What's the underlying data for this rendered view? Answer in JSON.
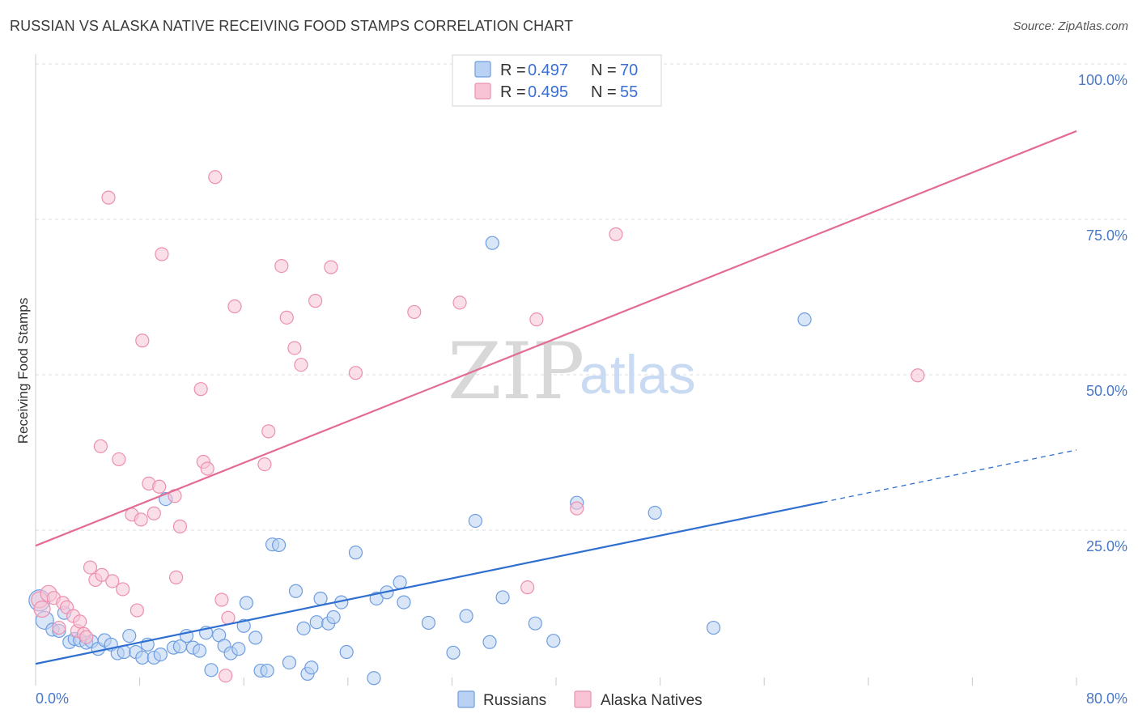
{
  "title": "RUSSIAN VS ALASKA NATIVE RECEIVING FOOD STAMPS CORRELATION CHART",
  "source": "Source: ZipAtlas.com",
  "watermark": {
    "part1": "ZIP",
    "part2": "atlas"
  },
  "colors": {
    "russians_fill": "#b9d1f3",
    "russians_stroke": "#6e9de0",
    "russians_line": "#2f6fd0",
    "alaska_fill": "#f8c4d5",
    "alaska_stroke": "#ec8fae",
    "alaska_line": "#e46b93",
    "grid": "#dcdcdc",
    "tick_text": "#4a78c8"
  },
  "legend": {
    "russians": {
      "r_label": "R =",
      "r_value": "0.497",
      "n_label": "N =",
      "n_value": "70"
    },
    "alaska": {
      "r_label": "R =",
      "r_value": "0.495",
      "n_label": "N =",
      "n_value": "55"
    }
  },
  "chart_data": {
    "type": "scatter",
    "title": "RUSSIAN VS ALASKA NATIVE RECEIVING FOOD STAMPS CORRELATION CHART",
    "xlabel": "",
    "ylabel": "Receiving Food Stamps",
    "xlim": [
      0,
      80
    ],
    "ylim": [
      0,
      100
    ],
    "x_tick_labels": [
      "0.0%",
      "80.0%"
    ],
    "y_ticks": [
      25,
      50,
      75,
      100
    ],
    "y_tick_labels": [
      "25.0%",
      "50.0%",
      "75.0%",
      "100.0%"
    ],
    "legend_items": [
      "Russians",
      "Alaska Natives"
    ],
    "series": [
      {
        "name": "Russians",
        "r": 0.497,
        "n": 70,
        "trend": {
          "x0": 0,
          "y0": 3.5,
          "x1": 60.5,
          "y1": 29.5,
          "dash_x1": 80,
          "dash_y1": 37.9
        },
        "points": [
          [
            0.3,
            13.7
          ],
          [
            0.7,
            10.5
          ],
          [
            1.3,
            9.0
          ],
          [
            1.8,
            8.8
          ],
          [
            2.2,
            11.7
          ],
          [
            2.6,
            7.0
          ],
          [
            3.0,
            7.5
          ],
          [
            3.4,
            7.3
          ],
          [
            3.9,
            6.9
          ],
          [
            4.3,
            7.1
          ],
          [
            4.8,
            5.9
          ],
          [
            5.3,
            7.3
          ],
          [
            5.8,
            6.6
          ],
          [
            6.3,
            5.2
          ],
          [
            6.8,
            5.4
          ],
          [
            7.2,
            8.0
          ],
          [
            7.7,
            5.4
          ],
          [
            8.2,
            4.5
          ],
          [
            8.6,
            6.6
          ],
          [
            9.1,
            4.5
          ],
          [
            9.6,
            5.0
          ],
          [
            10.0,
            30.0
          ],
          [
            10.6,
            6.1
          ],
          [
            11.1,
            6.3
          ],
          [
            11.6,
            8.0
          ],
          [
            12.1,
            6.1
          ],
          [
            12.6,
            5.6
          ],
          [
            13.1,
            8.5
          ],
          [
            13.5,
            2.5
          ],
          [
            14.1,
            8.1
          ],
          [
            14.5,
            6.4
          ],
          [
            15.0,
            5.2
          ],
          [
            15.6,
            5.9
          ],
          [
            16.0,
            9.6
          ],
          [
            16.2,
            13.3
          ],
          [
            16.9,
            7.7
          ],
          [
            17.3,
            2.4
          ],
          [
            17.8,
            2.4
          ],
          [
            18.2,
            22.7
          ],
          [
            18.7,
            22.6
          ],
          [
            19.5,
            3.7
          ],
          [
            20.0,
            15.2
          ],
          [
            20.6,
            9.2
          ],
          [
            20.9,
            1.9
          ],
          [
            21.2,
            2.9
          ],
          [
            21.6,
            10.2
          ],
          [
            21.9,
            14.0
          ],
          [
            22.5,
            10.0
          ],
          [
            22.9,
            11.0
          ],
          [
            23.5,
            13.4
          ],
          [
            23.9,
            5.4
          ],
          [
            24.6,
            21.4
          ],
          [
            26.2,
            14.0
          ],
          [
            26.0,
            1.2
          ],
          [
            27.0,
            15.0
          ],
          [
            28.0,
            16.6
          ],
          [
            28.3,
            13.4
          ],
          [
            30.2,
            10.1
          ],
          [
            32.1,
            5.3
          ],
          [
            33.1,
            11.2
          ],
          [
            33.8,
            26.5
          ],
          [
            34.9,
            7.0
          ],
          [
            35.1,
            71.2
          ],
          [
            35.9,
            14.2
          ],
          [
            38.4,
            10.0
          ],
          [
            39.8,
            7.2
          ],
          [
            41.6,
            29.4
          ],
          [
            47.6,
            27.8
          ],
          [
            52.1,
            9.3
          ],
          [
            59.1,
            58.9
          ]
        ]
      },
      {
        "name": "Alaska Natives",
        "r": 0.495,
        "n": 55,
        "trend": {
          "x0": 0,
          "y0": 22.5,
          "x1": 80,
          "y1": 89.2
        },
        "points": [
          [
            0.3,
            13.8
          ],
          [
            0.5,
            12.3
          ],
          [
            1.0,
            14.8
          ],
          [
            1.4,
            14.1
          ],
          [
            1.8,
            9.3
          ],
          [
            2.1,
            13.3
          ],
          [
            2.4,
            12.6
          ],
          [
            2.9,
            11.2
          ],
          [
            3.2,
            8.8
          ],
          [
            3.4,
            10.3
          ],
          [
            3.7,
            8.3
          ],
          [
            3.9,
            7.8
          ],
          [
            4.2,
            19.0
          ],
          [
            4.6,
            17.0
          ],
          [
            5.0,
            38.5
          ],
          [
            5.1,
            17.8
          ],
          [
            5.6,
            78.5
          ],
          [
            5.9,
            16.8
          ],
          [
            6.4,
            36.4
          ],
          [
            6.7,
            15.5
          ],
          [
            7.4,
            27.5
          ],
          [
            7.8,
            12.1
          ],
          [
            8.2,
            55.5
          ],
          [
            8.1,
            26.7
          ],
          [
            8.7,
            32.5
          ],
          [
            9.1,
            27.7
          ],
          [
            9.5,
            32.0
          ],
          [
            9.7,
            69.4
          ],
          [
            10.7,
            30.5
          ],
          [
            10.8,
            17.4
          ],
          [
            11.1,
            25.6
          ],
          [
            12.7,
            47.7
          ],
          [
            12.9,
            36.0
          ],
          [
            13.2,
            34.9
          ],
          [
            13.8,
            81.8
          ],
          [
            14.3,
            13.8
          ],
          [
            14.6,
            1.6
          ],
          [
            14.8,
            10.9
          ],
          [
            15.3,
            61.0
          ],
          [
            17.6,
            35.6
          ],
          [
            17.9,
            40.9
          ],
          [
            18.9,
            67.5
          ],
          [
            19.3,
            59.2
          ],
          [
            19.9,
            54.3
          ],
          [
            20.4,
            51.6
          ],
          [
            21.5,
            61.9
          ],
          [
            22.7,
            67.3
          ],
          [
            24.6,
            50.3
          ],
          [
            29.1,
            60.1
          ],
          [
            32.6,
            61.6
          ],
          [
            37.8,
            15.8
          ],
          [
            38.5,
            58.9
          ],
          [
            41.6,
            28.5
          ],
          [
            44.6,
            72.6
          ],
          [
            67.8,
            49.9
          ]
        ]
      }
    ]
  }
}
